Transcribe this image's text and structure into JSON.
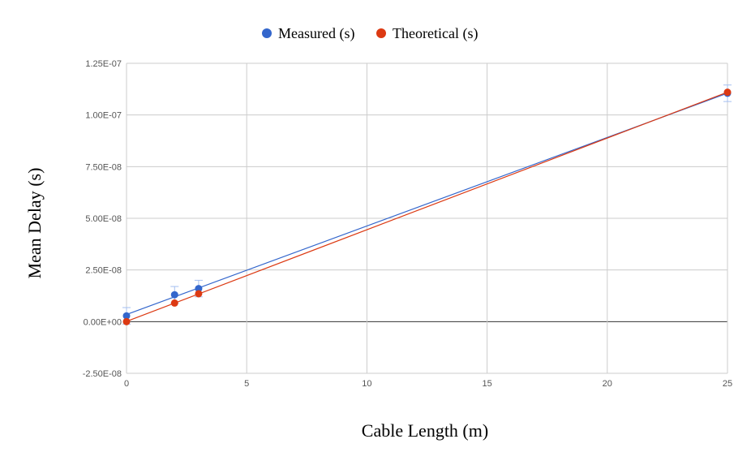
{
  "chart_data": {
    "type": "scatter",
    "title": "",
    "xlabel": "Cable Length (m)",
    "ylabel": "Mean Delay (s)",
    "xlim": [
      0,
      25
    ],
    "ylim": [
      -2.5e-08,
      1.25e-07
    ],
    "x_ticks": [
      {
        "value": 0,
        "label": "0"
      },
      {
        "value": 5,
        "label": "5"
      },
      {
        "value": 10,
        "label": "10"
      },
      {
        "value": 15,
        "label": "15"
      },
      {
        "value": 20,
        "label": "20"
      },
      {
        "value": 25,
        "label": "25"
      }
    ],
    "y_ticks": [
      {
        "value": 1.25e-07,
        "label": "1.25E-07"
      },
      {
        "value": 1e-07,
        "label": "1.00E-07"
      },
      {
        "value": 7.5e-08,
        "label": "7.50E-08"
      },
      {
        "value": 5e-08,
        "label": "5.00E-08"
      },
      {
        "value": 2.5e-08,
        "label": "2.50E-08"
      },
      {
        "value": 0,
        "label": "0.00E+00"
      },
      {
        "value": -2.5e-08,
        "label": "-2.50E-08"
      }
    ],
    "grid": true,
    "legend_position": "top",
    "series": [
      {
        "name": "Measured (s)",
        "color": "#3366cc",
        "x": [
          0,
          2,
          3,
          25
        ],
        "y": [
          2.8e-09,
          1.3e-08,
          1.6e-08,
          1.105e-07
        ],
        "error": [
          4e-09,
          4e-09,
          4e-09,
          4e-09
        ],
        "trendline": true
      },
      {
        "name": "Theoretical (s)",
        "color": "#dc3912",
        "x": [
          0,
          2,
          3,
          25
        ],
        "y": [
          0,
          9e-09,
          1.35e-08,
          1.11e-07
        ],
        "trendline": true
      }
    ]
  }
}
